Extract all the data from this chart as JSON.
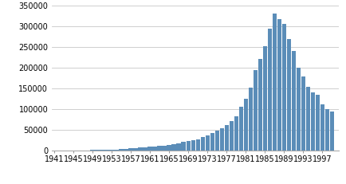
{
  "years": [
    1941,
    1942,
    1943,
    1944,
    1945,
    1946,
    1947,
    1948,
    1949,
    1950,
    1951,
    1952,
    1953,
    1954,
    1955,
    1956,
    1957,
    1958,
    1959,
    1960,
    1961,
    1962,
    1963,
    1964,
    1965,
    1966,
    1967,
    1968,
    1969,
    1970,
    1971,
    1972,
    1973,
    1974,
    1975,
    1976,
    1977,
    1978,
    1979,
    1980,
    1981,
    1982,
    1983,
    1984,
    1985,
    1986,
    1987,
    1988,
    1989,
    1990,
    1991,
    1992,
    1993,
    1994,
    1995,
    1996,
    1997,
    1998,
    1999
  ],
  "values": [
    500,
    500,
    500,
    500,
    500,
    1000,
    1200,
    1500,
    1800,
    2000,
    2200,
    2500,
    3000,
    3500,
    4000,
    5000,
    6000,
    7000,
    8000,
    9000,
    10000,
    11000,
    12000,
    13000,
    15000,
    17000,
    19000,
    21000,
    23000,
    25000,
    28000,
    33000,
    38000,
    43000,
    48000,
    54000,
    62000,
    72000,
    84000,
    107000,
    125000,
    152000,
    195000,
    222000,
    253000,
    295000,
    330000,
    318000,
    305000,
    270000,
    240000,
    200000,
    180000,
    155000,
    140000,
    135000,
    112000,
    100000,
    95000
  ],
  "bar_color": "#5b8db8",
  "background_color": "#ffffff",
  "ylim": [
    0,
    350000
  ],
  "yticks": [
    0,
    50000,
    100000,
    150000,
    200000,
    250000,
    300000,
    350000
  ],
  "xtick_labels": [
    "1941",
    "1945",
    "1949",
    "1953",
    "1957",
    "1961",
    "1965",
    "1969",
    "1973",
    "1977",
    "1981",
    "1985",
    "1989",
    "1993",
    "1997"
  ],
  "xtick_positions": [
    1941,
    1945,
    1949,
    1953,
    1957,
    1961,
    1965,
    1969,
    1973,
    1977,
    1981,
    1985,
    1989,
    1993,
    1997
  ],
  "grid_color": "#c8c8c8",
  "tick_fontsize": 7.0,
  "bar_width": 0.9
}
